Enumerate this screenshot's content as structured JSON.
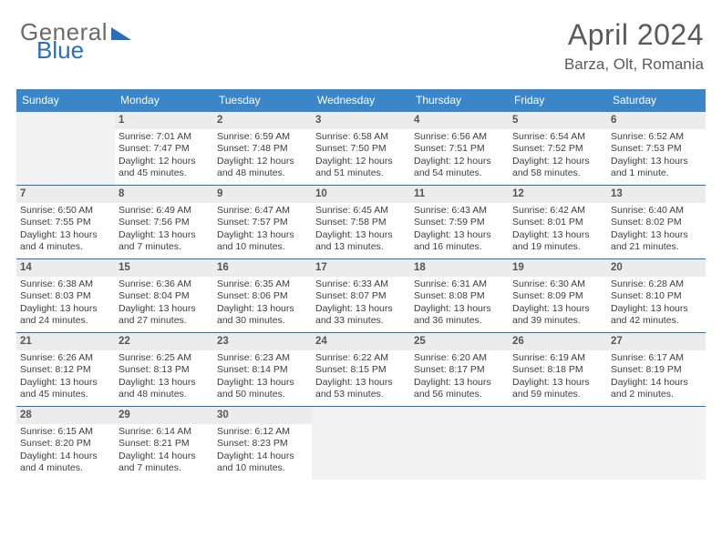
{
  "logo": {
    "word1": "General",
    "word2": "Blue"
  },
  "title": "April 2024",
  "location": "Barza, Olt, Romania",
  "colors": {
    "header_bg": "#3a86c8",
    "rule": "#2a6db8",
    "daynum_bg": "#ececec",
    "empty_bg": "#f2f2f2",
    "text": "#3d3d3d",
    "title_text": "#5a5a5a"
  },
  "day_names": [
    "Sunday",
    "Monday",
    "Tuesday",
    "Wednesday",
    "Thursday",
    "Friday",
    "Saturday"
  ],
  "first_weekday_index": 1,
  "days": [
    {
      "n": 1,
      "sunrise": "7:01 AM",
      "sunset": "7:47 PM",
      "daylight": "12 hours and 45 minutes."
    },
    {
      "n": 2,
      "sunrise": "6:59 AM",
      "sunset": "7:48 PM",
      "daylight": "12 hours and 48 minutes."
    },
    {
      "n": 3,
      "sunrise": "6:58 AM",
      "sunset": "7:50 PM",
      "daylight": "12 hours and 51 minutes."
    },
    {
      "n": 4,
      "sunrise": "6:56 AM",
      "sunset": "7:51 PM",
      "daylight": "12 hours and 54 minutes."
    },
    {
      "n": 5,
      "sunrise": "6:54 AM",
      "sunset": "7:52 PM",
      "daylight": "12 hours and 58 minutes."
    },
    {
      "n": 6,
      "sunrise": "6:52 AM",
      "sunset": "7:53 PM",
      "daylight": "13 hours and 1 minute."
    },
    {
      "n": 7,
      "sunrise": "6:50 AM",
      "sunset": "7:55 PM",
      "daylight": "13 hours and 4 minutes."
    },
    {
      "n": 8,
      "sunrise": "6:49 AM",
      "sunset": "7:56 PM",
      "daylight": "13 hours and 7 minutes."
    },
    {
      "n": 9,
      "sunrise": "6:47 AM",
      "sunset": "7:57 PM",
      "daylight": "13 hours and 10 minutes."
    },
    {
      "n": 10,
      "sunrise": "6:45 AM",
      "sunset": "7:58 PM",
      "daylight": "13 hours and 13 minutes."
    },
    {
      "n": 11,
      "sunrise": "6:43 AM",
      "sunset": "7:59 PM",
      "daylight": "13 hours and 16 minutes."
    },
    {
      "n": 12,
      "sunrise": "6:42 AM",
      "sunset": "8:01 PM",
      "daylight": "13 hours and 19 minutes."
    },
    {
      "n": 13,
      "sunrise": "6:40 AM",
      "sunset": "8:02 PM",
      "daylight": "13 hours and 21 minutes."
    },
    {
      "n": 14,
      "sunrise": "6:38 AM",
      "sunset": "8:03 PM",
      "daylight": "13 hours and 24 minutes."
    },
    {
      "n": 15,
      "sunrise": "6:36 AM",
      "sunset": "8:04 PM",
      "daylight": "13 hours and 27 minutes."
    },
    {
      "n": 16,
      "sunrise": "6:35 AM",
      "sunset": "8:06 PM",
      "daylight": "13 hours and 30 minutes."
    },
    {
      "n": 17,
      "sunrise": "6:33 AM",
      "sunset": "8:07 PM",
      "daylight": "13 hours and 33 minutes."
    },
    {
      "n": 18,
      "sunrise": "6:31 AM",
      "sunset": "8:08 PM",
      "daylight": "13 hours and 36 minutes."
    },
    {
      "n": 19,
      "sunrise": "6:30 AM",
      "sunset": "8:09 PM",
      "daylight": "13 hours and 39 minutes."
    },
    {
      "n": 20,
      "sunrise": "6:28 AM",
      "sunset": "8:10 PM",
      "daylight": "13 hours and 42 minutes."
    },
    {
      "n": 21,
      "sunrise": "6:26 AM",
      "sunset": "8:12 PM",
      "daylight": "13 hours and 45 minutes."
    },
    {
      "n": 22,
      "sunrise": "6:25 AM",
      "sunset": "8:13 PM",
      "daylight": "13 hours and 48 minutes."
    },
    {
      "n": 23,
      "sunrise": "6:23 AM",
      "sunset": "8:14 PM",
      "daylight": "13 hours and 50 minutes."
    },
    {
      "n": 24,
      "sunrise": "6:22 AM",
      "sunset": "8:15 PM",
      "daylight": "13 hours and 53 minutes."
    },
    {
      "n": 25,
      "sunrise": "6:20 AM",
      "sunset": "8:17 PM",
      "daylight": "13 hours and 56 minutes."
    },
    {
      "n": 26,
      "sunrise": "6:19 AM",
      "sunset": "8:18 PM",
      "daylight": "13 hours and 59 minutes."
    },
    {
      "n": 27,
      "sunrise": "6:17 AM",
      "sunset": "8:19 PM",
      "daylight": "14 hours and 2 minutes."
    },
    {
      "n": 28,
      "sunrise": "6:15 AM",
      "sunset": "8:20 PM",
      "daylight": "14 hours and 4 minutes."
    },
    {
      "n": 29,
      "sunrise": "6:14 AM",
      "sunset": "8:21 PM",
      "daylight": "14 hours and 7 minutes."
    },
    {
      "n": 30,
      "sunrise": "6:12 AM",
      "sunset": "8:23 PM",
      "daylight": "14 hours and 10 minutes."
    }
  ],
  "labels": {
    "sunrise": "Sunrise:",
    "sunset": "Sunset:",
    "daylight": "Daylight:"
  }
}
